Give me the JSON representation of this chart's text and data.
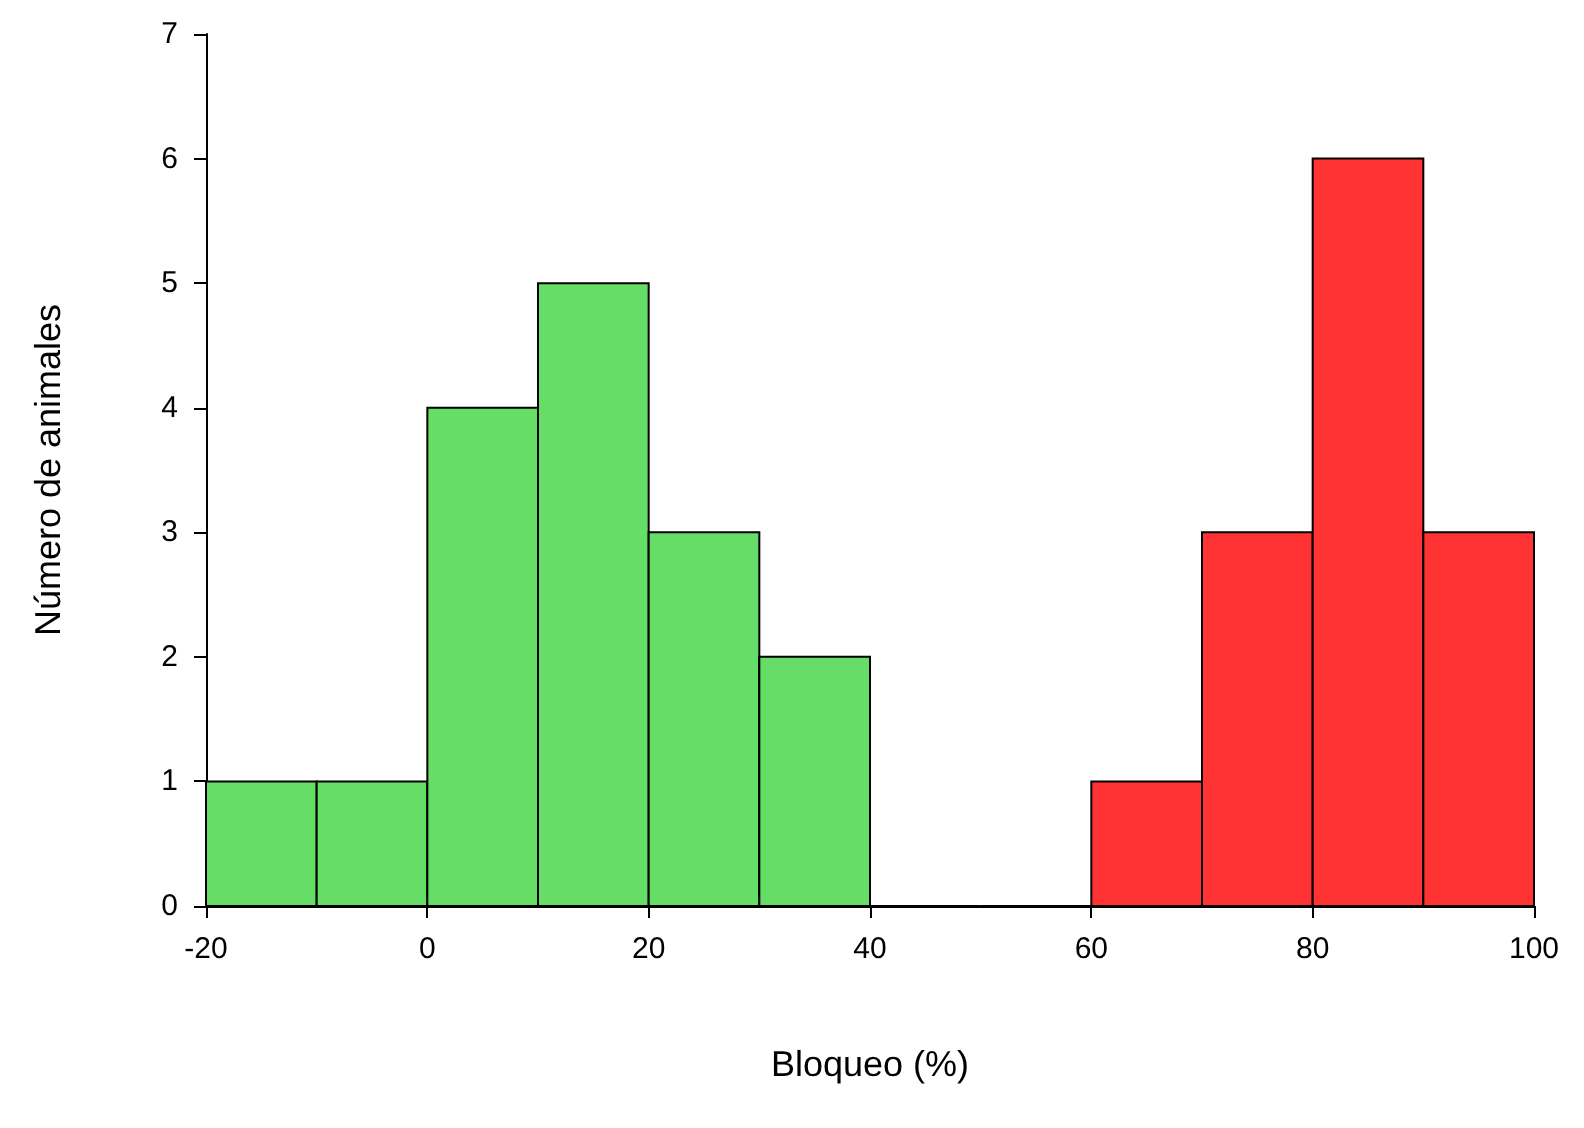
{
  "chart_data": {
    "type": "histogram",
    "xlabel": "Bloqueo (%)",
    "ylabel": "Número de animales",
    "bins": [
      -20,
      -10,
      0,
      10,
      20,
      30,
      40,
      50,
      60,
      70,
      80,
      90,
      100
    ],
    "values": [
      1,
      1,
      4,
      5,
      3,
      2,
      0,
      0,
      1,
      3,
      6,
      3
    ],
    "colors": [
      "#66dd66",
      "#66dd66",
      "#66dd66",
      "#66dd66",
      "#66dd66",
      "#66dd66",
      "#66dd66",
      "#66dd66",
      "#ff3333",
      "#ff3333",
      "#ff3333",
      "#ff3333"
    ],
    "xlim": [
      -20,
      100
    ],
    "xticks": [
      -20,
      0,
      20,
      40,
      60,
      80,
      100
    ],
    "ylim": [
      0,
      7
    ],
    "yticks": [
      0,
      1,
      2,
      3,
      4,
      5,
      6,
      7
    ],
    "grid": false
  }
}
